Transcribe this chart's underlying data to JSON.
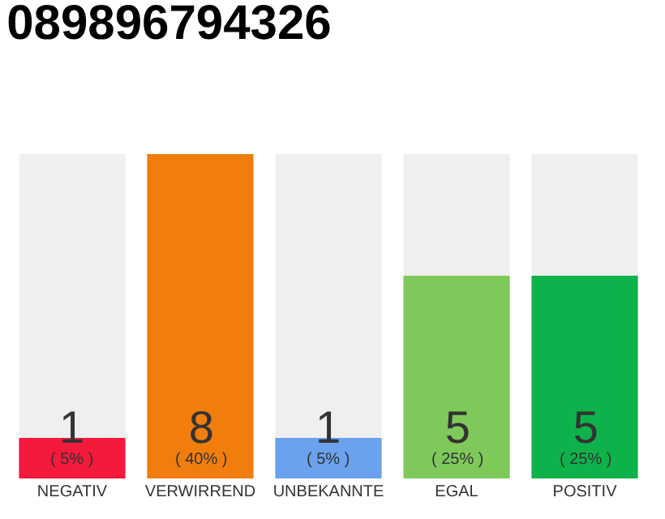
{
  "chart_data": {
    "type": "bar",
    "title": "089896794326",
    "categories": [
      "NEGATIV",
      "VERWIRREND",
      "UNBEKANNTE",
      "EGAL",
      "POSITIV"
    ],
    "values": [
      1,
      8,
      1,
      5,
      5
    ],
    "colors": [
      "#f5193c",
      "#f07d0c",
      "#6aa2ee",
      "#7ec95a",
      "#0db34a"
    ],
    "value_labels": [
      "1\n( 5% )",
      "8\n( 40% )",
      "1\n( 5% )",
      "5\n( 25% )",
      "5\n( 25% )"
    ],
    "tick_labels": "x"
  }
}
